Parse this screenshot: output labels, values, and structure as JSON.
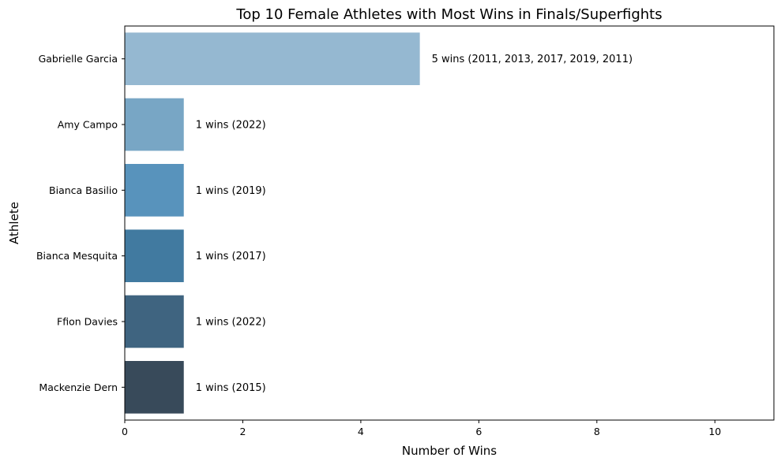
{
  "chart_data": {
    "type": "bar",
    "orientation": "horizontal",
    "title": "Top 10 Female Athletes with Most Wins in Finals/Superfights",
    "xlabel": "Number of Wins",
    "ylabel": "Athlete",
    "xlim": [
      0,
      11
    ],
    "xticks": [
      0,
      2,
      4,
      6,
      8,
      10
    ],
    "grid": false,
    "categories": [
      "Gabrielle Garcia",
      "Amy Campo",
      "Bianca Basilio",
      "Bianca Mesquita",
      "Ffion Davies",
      "Mackenzie Dern"
    ],
    "values": [
      5,
      1,
      1,
      1,
      1,
      1
    ],
    "data_labels": [
      "5 wins (2011, 2013, 2017, 2019, 2011)",
      "1 wins (2022)",
      "1 wins (2019)",
      "1 wins (2017)",
      "1 wins (2022)",
      "1 wins (2015)"
    ],
    "colors": [
      "#95b8d1",
      "#78a6c5",
      "#5893bc",
      "#417aa0",
      "#3f6480",
      "#384a5a"
    ]
  }
}
